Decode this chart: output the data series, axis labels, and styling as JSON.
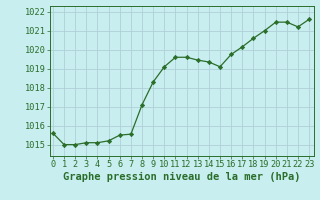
{
  "x": [
    0,
    1,
    2,
    3,
    4,
    5,
    6,
    7,
    8,
    9,
    10,
    11,
    12,
    13,
    14,
    15,
    16,
    17,
    18,
    19,
    20,
    21,
    22,
    23
  ],
  "y": [
    1015.6,
    1015.0,
    1015.0,
    1015.1,
    1015.1,
    1015.2,
    1015.5,
    1015.55,
    1017.1,
    1018.3,
    1019.1,
    1019.6,
    1019.6,
    1019.45,
    1019.35,
    1019.1,
    1019.75,
    1020.15,
    1020.6,
    1021.0,
    1021.45,
    1021.45,
    1021.2,
    1021.6
  ],
  "line_color": "#2a6e2a",
  "marker": "D",
  "marker_size": 2.2,
  "bg_color": "#c8eef0",
  "grid_color": "#b0d0d8",
  "xlabel": "Graphe pression niveau de la mer (hPa)",
  "xlabel_fontsize": 7.5,
  "tick_fontsize": 6.2,
  "ylim": [
    1014.4,
    1022.3
  ],
  "yticks": [
    1015,
    1016,
    1017,
    1018,
    1019,
    1020,
    1021,
    1022
  ],
  "xticks": [
    0,
    1,
    2,
    3,
    4,
    5,
    6,
    7,
    8,
    9,
    10,
    11,
    12,
    13,
    14,
    15,
    16,
    17,
    18,
    19,
    20,
    21,
    22,
    23
  ],
  "xlim": [
    -0.3,
    23.4
  ]
}
